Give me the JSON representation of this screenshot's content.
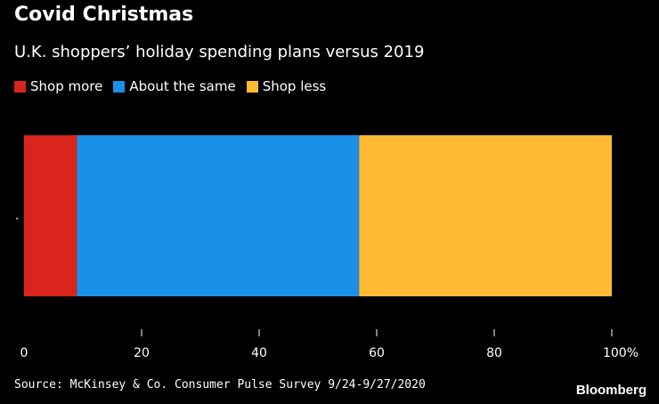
{
  "chart_data": {
    "type": "bar",
    "orientation": "horizontal",
    "stacked": true,
    "title": "Covid Christmas",
    "subtitle": "U.K. shoppers’ holiday spending plans versus 2019",
    "categories": [
      "."
    ],
    "series": [
      {
        "name": "Shop more",
        "values": [
          9
        ],
        "color": "#d9251c"
      },
      {
        "name": "About the same",
        "values": [
          48
        ],
        "color": "#1a90e8"
      },
      {
        "name": "Shop less",
        "values": [
          43
        ],
        "color": "#ffba33"
      }
    ],
    "x_ticks": [
      "0",
      "20",
      "40",
      "60",
      "80",
      "100%"
    ],
    "xlim": [
      0,
      100
    ],
    "source": "Source: McKinsey & Co. Consumer Pulse Survey 9/24-9/27/2020",
    "brand": "Bloomberg"
  }
}
